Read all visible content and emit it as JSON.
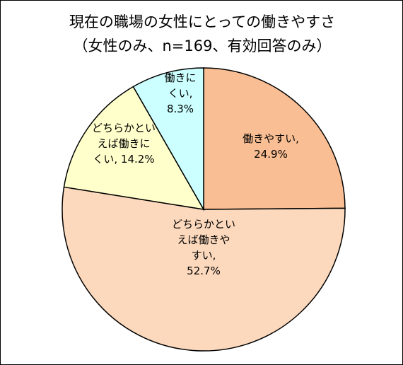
{
  "chart_data": {
    "type": "pie",
    "title_lines": [
      "現在の職場の女性にとっての働きやすさ",
      "（女性のみ、n=169、有効回答のみ）"
    ],
    "slices": [
      {
        "label_lines": [
          "働きやすい,",
          "24.9%"
        ],
        "value": 24.9,
        "color": "#F9BE93"
      },
      {
        "label_lines": [
          "どちらかとい",
          "えば働きや",
          "すい,",
          "52.7%"
        ],
        "value": 52.7,
        "color": "#FCD9BD"
      },
      {
        "label_lines": [
          "どちらかとい",
          "えば働きに",
          "くい, 14.2%"
        ],
        "value": 14.2,
        "color": "#FFFFCC"
      },
      {
        "label_lines": [
          "働きに",
          "くい,",
          "8.3%"
        ],
        "value": 8.3,
        "color": "#CCFFFF"
      }
    ],
    "start_angle_deg": 0,
    "direction": "clockwise",
    "outline_color": "#000000"
  }
}
